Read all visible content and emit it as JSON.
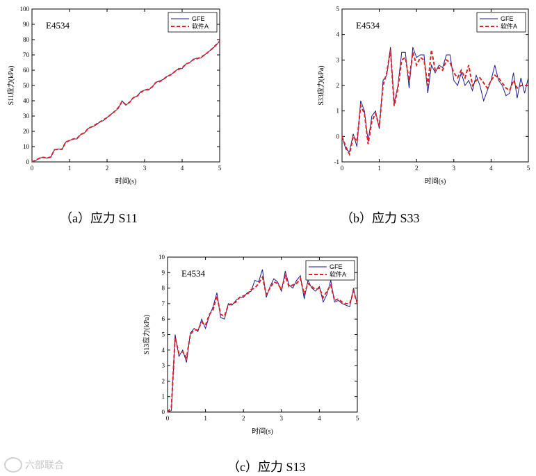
{
  "chart_data": [
    {
      "type": "line",
      "panel_tag": "E4534",
      "xlabel": "时间(s)",
      "ylabel": "S11应力(kPa)",
      "xlim": [
        0,
        5
      ],
      "ylim": [
        0,
        100
      ],
      "xticks": [
        "0",
        "1",
        "2",
        "3",
        "4",
        "5"
      ],
      "yticks": [
        "0",
        "10",
        "20",
        "30",
        "40",
        "50",
        "60",
        "70",
        "80",
        "90",
        "100"
      ],
      "legend": "top-right",
      "caption": "（a）应力 S11",
      "series": [
        {
          "name": "GFE",
          "color": "#1a1a8c",
          "style": "solid",
          "x": [
            0,
            0.1,
            0.2,
            0.3,
            0.4,
            0.5,
            0.6,
            0.7,
            0.8,
            0.9,
            1.0,
            1.1,
            1.2,
            1.3,
            1.4,
            1.5,
            1.6,
            1.7,
            1.8,
            1.9,
            2.0,
            2.1,
            2.2,
            2.3,
            2.4,
            2.5,
            2.6,
            2.7,
            2.8,
            2.9,
            3.0,
            3.1,
            3.2,
            3.3,
            3.4,
            3.5,
            3.6,
            3.7,
            3.8,
            3.9,
            4.0,
            4.1,
            4.2,
            4.3,
            4.4,
            4.5,
            4.6,
            4.7,
            4.8,
            4.9,
            5.0
          ],
          "y": [
            0,
            1,
            2.5,
            3,
            2.5,
            3,
            8,
            8.5,
            8,
            13,
            14,
            15,
            15,
            18,
            19,
            22,
            23,
            24,
            26,
            27,
            29,
            31,
            33,
            35,
            40,
            37,
            39,
            42,
            43,
            46,
            47,
            47,
            49,
            52,
            53,
            54,
            56,
            57,
            59,
            61,
            61,
            64,
            65,
            67,
            68,
            68,
            70,
            72,
            74,
            76,
            79
          ]
        },
        {
          "name": "软件A",
          "color": "#e02020",
          "style": "dashed",
          "x": [
            0,
            0.1,
            0.2,
            0.3,
            0.4,
            0.5,
            0.6,
            0.7,
            0.8,
            0.9,
            1.0,
            1.1,
            1.2,
            1.3,
            1.4,
            1.5,
            1.6,
            1.7,
            1.8,
            1.9,
            2.0,
            2.1,
            2.2,
            2.3,
            2.4,
            2.5,
            2.6,
            2.7,
            2.8,
            2.9,
            3.0,
            3.1,
            3.2,
            3.3,
            3.4,
            3.5,
            3.6,
            3.7,
            3.8,
            3.9,
            4.0,
            4.1,
            4.2,
            4.3,
            4.4,
            4.5,
            4.6,
            4.7,
            4.8,
            4.9,
            5.0
          ],
          "y": [
            0,
            1.2,
            2.4,
            3,
            2.6,
            3.2,
            8,
            8.2,
            8.3,
            13,
            14,
            15,
            15.5,
            18,
            19,
            22,
            23,
            24.5,
            26,
            27.5,
            29,
            31,
            33,
            35.5,
            39.5,
            37.5,
            39,
            42,
            43,
            45.5,
            47,
            47.5,
            49,
            52,
            52.5,
            54,
            56,
            57,
            59,
            60.5,
            61.5,
            64,
            65,
            67,
            67.5,
            68.5,
            70,
            72,
            74,
            76.5,
            79
          ]
        }
      ]
    },
    {
      "type": "line",
      "panel_tag": "E4534",
      "xlabel": "时间(s)",
      "ylabel": "S33应力(kPa)",
      "xlim": [
        0,
        5
      ],
      "ylim": [
        -1,
        5
      ],
      "xticks": [
        "0",
        "1",
        "2",
        "3",
        "4",
        "5"
      ],
      "yticks": [
        "-1",
        "0",
        "1",
        "2",
        "3",
        "4",
        "5"
      ],
      "legend": "top-right",
      "caption": "（b）应力 S33",
      "series": [
        {
          "name": "GFE",
          "color": "#1a1a8c",
          "style": "solid",
          "x": [
            0,
            0.1,
            0.2,
            0.3,
            0.4,
            0.5,
            0.6,
            0.7,
            0.8,
            0.9,
            1.0,
            1.1,
            1.2,
            1.3,
            1.4,
            1.5,
            1.6,
            1.7,
            1.8,
            1.9,
            2.0,
            2.1,
            2.2,
            2.3,
            2.4,
            2.5,
            2.6,
            2.7,
            2.8,
            2.9,
            3.0,
            3.1,
            3.2,
            3.3,
            3.4,
            3.5,
            3.6,
            3.7,
            3.8,
            3.9,
            4.0,
            4.1,
            4.2,
            4.3,
            4.4,
            4.5,
            4.6,
            4.7,
            4.8,
            4.9,
            5.0
          ],
          "y": [
            0,
            -0.5,
            -0.6,
            0.1,
            -0.4,
            1.4,
            1.0,
            -0.2,
            0.8,
            1.0,
            0.3,
            2.2,
            2.4,
            3.5,
            1.3,
            2.0,
            3.3,
            3.3,
            1.9,
            3.5,
            3.1,
            3.2,
            3.2,
            1.7,
            2.8,
            2.5,
            2.8,
            2.7,
            3.2,
            3.2,
            2.2,
            2.0,
            2.5,
            2.0,
            2.2,
            1.8,
            2.4,
            2.0,
            1.4,
            1.8,
            2.2,
            2.8,
            2.2,
            2.0,
            1.6,
            1.7,
            2.5,
            1.5,
            2.3,
            1.7,
            2.3
          ]
        },
        {
          "name": "软件A",
          "color": "#e02020",
          "style": "dashed",
          "x": [
            0,
            0.1,
            0.2,
            0.3,
            0.4,
            0.5,
            0.6,
            0.7,
            0.8,
            0.9,
            1.0,
            1.1,
            1.2,
            1.3,
            1.4,
            1.5,
            1.6,
            1.7,
            1.8,
            1.9,
            2.0,
            2.1,
            2.2,
            2.3,
            2.4,
            2.5,
            2.6,
            2.7,
            2.8,
            2.9,
            3.0,
            3.1,
            3.2,
            3.3,
            3.4,
            3.5,
            3.6,
            3.7,
            3.8,
            3.9,
            4.0,
            4.1,
            4.2,
            4.3,
            4.4,
            4.5,
            4.6,
            4.7,
            4.8,
            4.9,
            5.0
          ],
          "y": [
            0,
            -0.4,
            -0.7,
            0.0,
            -0.2,
            1.2,
            0.9,
            -0.3,
            0.6,
            0.9,
            0.4,
            2.0,
            2.5,
            3.4,
            1.2,
            1.9,
            3.0,
            3.1,
            2.2,
            3.3,
            2.8,
            3.1,
            3.0,
            2.0,
            3.4,
            2.6,
            2.7,
            2.6,
            3.0,
            2.9,
            2.5,
            2.3,
            2.6,
            2.3,
            2.8,
            2.0,
            2.2,
            2.3,
            2.1,
            1.9,
            2.2,
            2.4,
            2.3,
            2.1,
            1.9,
            1.8,
            2.2,
            1.9,
            2.0,
            2.0,
            2.0
          ]
        }
      ]
    },
    {
      "type": "line",
      "panel_tag": "E4534",
      "xlabel": "时间(s)",
      "ylabel": "S13应力(kPa)",
      "xlim": [
        0,
        5
      ],
      "ylim": [
        0,
        10
      ],
      "xticks": [
        "0",
        "1",
        "2",
        "3",
        "4",
        "5"
      ],
      "yticks": [
        "0",
        "1",
        "2",
        "3",
        "4",
        "5",
        "6",
        "7",
        "8",
        "9",
        "10"
      ],
      "legend": "top-right",
      "caption": "（c）应力 S13",
      "series": [
        {
          "name": "GFE",
          "color": "#1a1a8c",
          "style": "solid",
          "x": [
            0,
            0.1,
            0.2,
            0.3,
            0.4,
            0.5,
            0.6,
            0.7,
            0.8,
            0.9,
            1.0,
            1.1,
            1.2,
            1.3,
            1.4,
            1.5,
            1.6,
            1.7,
            1.8,
            1.9,
            2.0,
            2.1,
            2.2,
            2.3,
            2.4,
            2.5,
            2.6,
            2.7,
            2.8,
            2.9,
            3.0,
            3.1,
            3.2,
            3.3,
            3.4,
            3.5,
            3.6,
            3.7,
            3.8,
            3.9,
            4.0,
            4.1,
            4.2,
            4.3,
            4.4,
            4.5,
            4.6,
            4.7,
            4.8,
            4.9,
            5.0
          ],
          "y": [
            0,
            0.1,
            5.0,
            3.6,
            4.0,
            3.2,
            5.1,
            5.4,
            5.2,
            6.0,
            5.4,
            6.2,
            6.8,
            7.7,
            6.1,
            6.0,
            7.0,
            6.9,
            7.2,
            7.4,
            7.4,
            7.7,
            7.8,
            8.5,
            8.4,
            9.2,
            7.4,
            8.1,
            8.6,
            8.4,
            7.8,
            9.1,
            8.2,
            8.0,
            8.5,
            8.8,
            7.3,
            8.5,
            8.0,
            7.8,
            8.1,
            7.1,
            7.6,
            8.5,
            7.1,
            7.2,
            7.0,
            6.9,
            6.8,
            8.0,
            6.9
          ]
        },
        {
          "name": "软件A",
          "color": "#e02020",
          "style": "dashed",
          "x": [
            0,
            0.1,
            0.2,
            0.3,
            0.4,
            0.5,
            0.6,
            0.7,
            0.8,
            0.9,
            1.0,
            1.1,
            1.2,
            1.3,
            1.4,
            1.5,
            1.6,
            1.7,
            1.8,
            1.9,
            2.0,
            2.1,
            2.2,
            2.3,
            2.4,
            2.5,
            2.6,
            2.7,
            2.8,
            2.9,
            3.0,
            3.1,
            3.2,
            3.3,
            3.4,
            3.5,
            3.6,
            3.7,
            3.8,
            3.9,
            4.0,
            4.1,
            4.2,
            4.3,
            4.4,
            4.5,
            4.6,
            4.7,
            4.8,
            4.9,
            5.0
          ],
          "y": [
            0,
            0.3,
            4.8,
            3.8,
            3.9,
            3.5,
            5.0,
            5.3,
            5.3,
            5.8,
            5.6,
            6.3,
            6.6,
            7.5,
            6.3,
            6.2,
            6.9,
            7.0,
            7.1,
            7.4,
            7.5,
            7.6,
            7.9,
            8.0,
            8.3,
            8.7,
            7.6,
            8.0,
            8.4,
            8.3,
            7.9,
            8.8,
            8.1,
            8.2,
            8.3,
            8.6,
            7.6,
            8.3,
            8.1,
            7.9,
            8.0,
            7.4,
            7.8,
            8.2,
            7.2,
            7.3,
            7.1,
            7.0,
            7.0,
            7.8,
            7.0
          ]
        }
      ]
    }
  ],
  "watermark": {
    "text": "六部联合"
  }
}
